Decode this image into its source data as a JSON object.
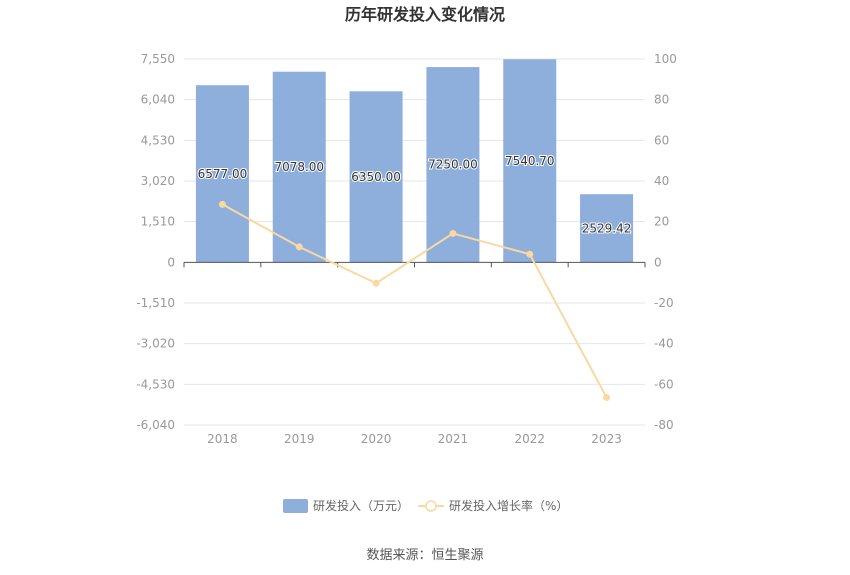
{
  "chart_data": {
    "type": "bar",
    "title": "历年研发投入变化情况",
    "categories": [
      "2018",
      "2019",
      "2020",
      "2021",
      "2022",
      "2023"
    ],
    "series": [
      {
        "name": "研发投入（万元）",
        "type": "bar",
        "axis": "left",
        "values": [
          6577.0,
          7078.0,
          6350.0,
          7250.0,
          7540.7,
          2529.42
        ],
        "labels": [
          "6577.00",
          "7078.00",
          "6350.00",
          "7250.00",
          "7540.70",
          "2529.42"
        ],
        "color": "#8eaedc"
      },
      {
        "name": "研发投入增长率（%）",
        "type": "line",
        "axis": "right",
        "values": [
          28.5,
          7.6,
          -10.3,
          14.2,
          4.0,
          -66.5
        ],
        "color": "#f8d9a0"
      }
    ],
    "y_left": {
      "ylim": [
        -6040,
        7550
      ],
      "ticks": [
        7550,
        6040,
        4530,
        3020,
        1510,
        0,
        -1510,
        -3020,
        -4530,
        -6040
      ],
      "tick_labels": [
        "7,550",
        "6,040",
        "4,530",
        "3,020",
        "1,510",
        "0",
        "-1,510",
        "-3,020",
        "-4,530",
        "-6,040"
      ]
    },
    "y_right": {
      "ylim": [
        -80,
        100
      ],
      "ticks": [
        100,
        80,
        60,
        40,
        20,
        0,
        -20,
        -40,
        -60,
        -80
      ],
      "tick_labels": [
        "100",
        "80",
        "60",
        "40",
        "20",
        "0",
        "-20",
        "-40",
        "-60",
        "-80"
      ]
    },
    "grid": true,
    "legend_position": "bottom-center"
  },
  "source_text": "数据来源：恒生聚源"
}
